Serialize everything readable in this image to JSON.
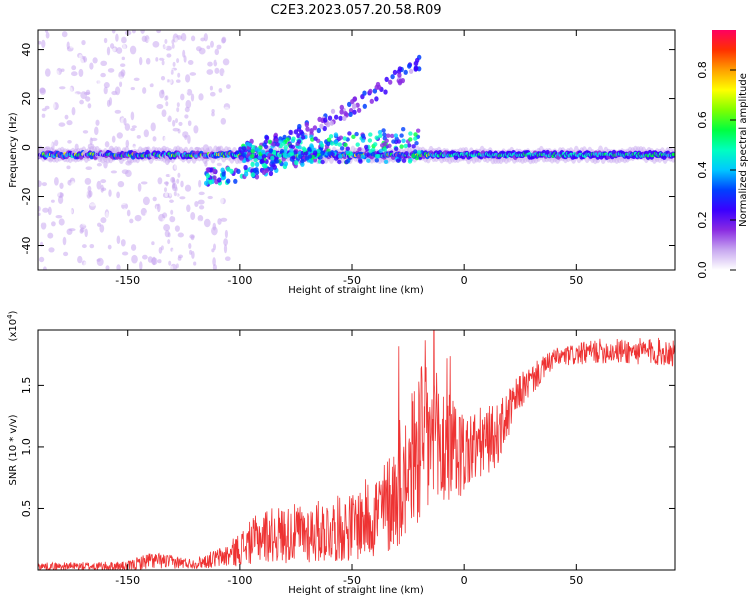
{
  "title": "C2E3.2023.057.20.58.R09",
  "chart_data": [
    {
      "type": "heatmap",
      "xlabel": "Height of straight line (km)",
      "ylabel": "Frequency (Hz)",
      "xlim": [
        -190,
        94
      ],
      "ylim": [
        -50,
        48
      ],
      "xticks": [
        -150,
        -100,
        -50,
        0,
        50
      ],
      "yticks": [
        -40,
        -20,
        0,
        20,
        40
      ],
      "colorbar": {
        "label": "Normalized spectral amplitude",
        "range": [
          0,
          0.96
        ],
        "ticks": [
          0.0,
          0.2,
          0.4,
          0.6,
          0.8
        ],
        "tick_labels": [
          "0.0",
          "0.2",
          "0.4",
          "0.6",
          "0.8"
        ],
        "colors": [
          "#ffffff",
          "#c8a8f0",
          "#8a2be2",
          "#3a00ff",
          "#0040ff",
          "#00c8ff",
          "#00ffc0",
          "#00ff40",
          "#80ff00",
          "#ffff00",
          "#ffa000",
          "#ff3000",
          "#ff0060"
        ]
      },
      "features": [
        {
          "label": "main band centered near 0 Hz",
          "x_range": [
            -190,
            94
          ],
          "center_hz": -3,
          "width_hz": 6,
          "amplitude": 0.45
        },
        {
          "label": "rising branch",
          "from": [
            -100,
            0
          ],
          "to": [
            -20,
            35
          ],
          "amplitude": 0.35
        },
        {
          "label": "lower branch",
          "from": [
            -115,
            -12
          ],
          "to": [
            -60,
            0
          ],
          "amplitude": 0.5
        }
      ]
    },
    {
      "type": "line",
      "xlabel": "Height of straight line (km)",
      "ylabel": "SNR (10 * v/v)",
      "y_multiplier": "(x10",
      "y_multiplier_exp": "4",
      "xlim": [
        -190,
        94
      ],
      "ylim": [
        0,
        1.95
      ],
      "xticks": [
        -150,
        -100,
        -50,
        0,
        50
      ],
      "yticks": [
        0.5,
        1.0,
        1.5
      ],
      "ytick_labels": [
        "0.5",
        "1.0",
        "1.5"
      ],
      "series": [
        {
          "color": "#ee3333",
          "envelope": [
            {
              "x": -190,
              "y": 0.03,
              "n": 0.03
            },
            {
              "x": -150,
              "y": 0.03,
              "n": 0.04
            },
            {
              "x": -140,
              "y": 0.08,
              "n": 0.07
            },
            {
              "x": -120,
              "y": 0.05,
              "n": 0.04
            },
            {
              "x": -105,
              "y": 0.12,
              "n": 0.1
            },
            {
              "x": -90,
              "y": 0.28,
              "n": 0.22
            },
            {
              "x": -70,
              "y": 0.3,
              "n": 0.25
            },
            {
              "x": -50,
              "y": 0.35,
              "n": 0.28
            },
            {
              "x": -35,
              "y": 0.5,
              "n": 0.4
            },
            {
              "x": -25,
              "y": 0.8,
              "n": 0.55
            },
            {
              "x": -18,
              "y": 1.1,
              "n": 0.8
            },
            {
              "x": -12,
              "y": 1.0,
              "n": 0.6
            },
            {
              "x": 0,
              "y": 0.95,
              "n": 0.35
            },
            {
              "x": 15,
              "y": 1.1,
              "n": 0.25
            },
            {
              "x": 25,
              "y": 1.45,
              "n": 0.15
            },
            {
              "x": 40,
              "y": 1.72,
              "n": 0.08
            },
            {
              "x": 60,
              "y": 1.78,
              "n": 0.1
            },
            {
              "x": 94,
              "y": 1.77,
              "n": 0.12
            }
          ]
        }
      ]
    }
  ]
}
